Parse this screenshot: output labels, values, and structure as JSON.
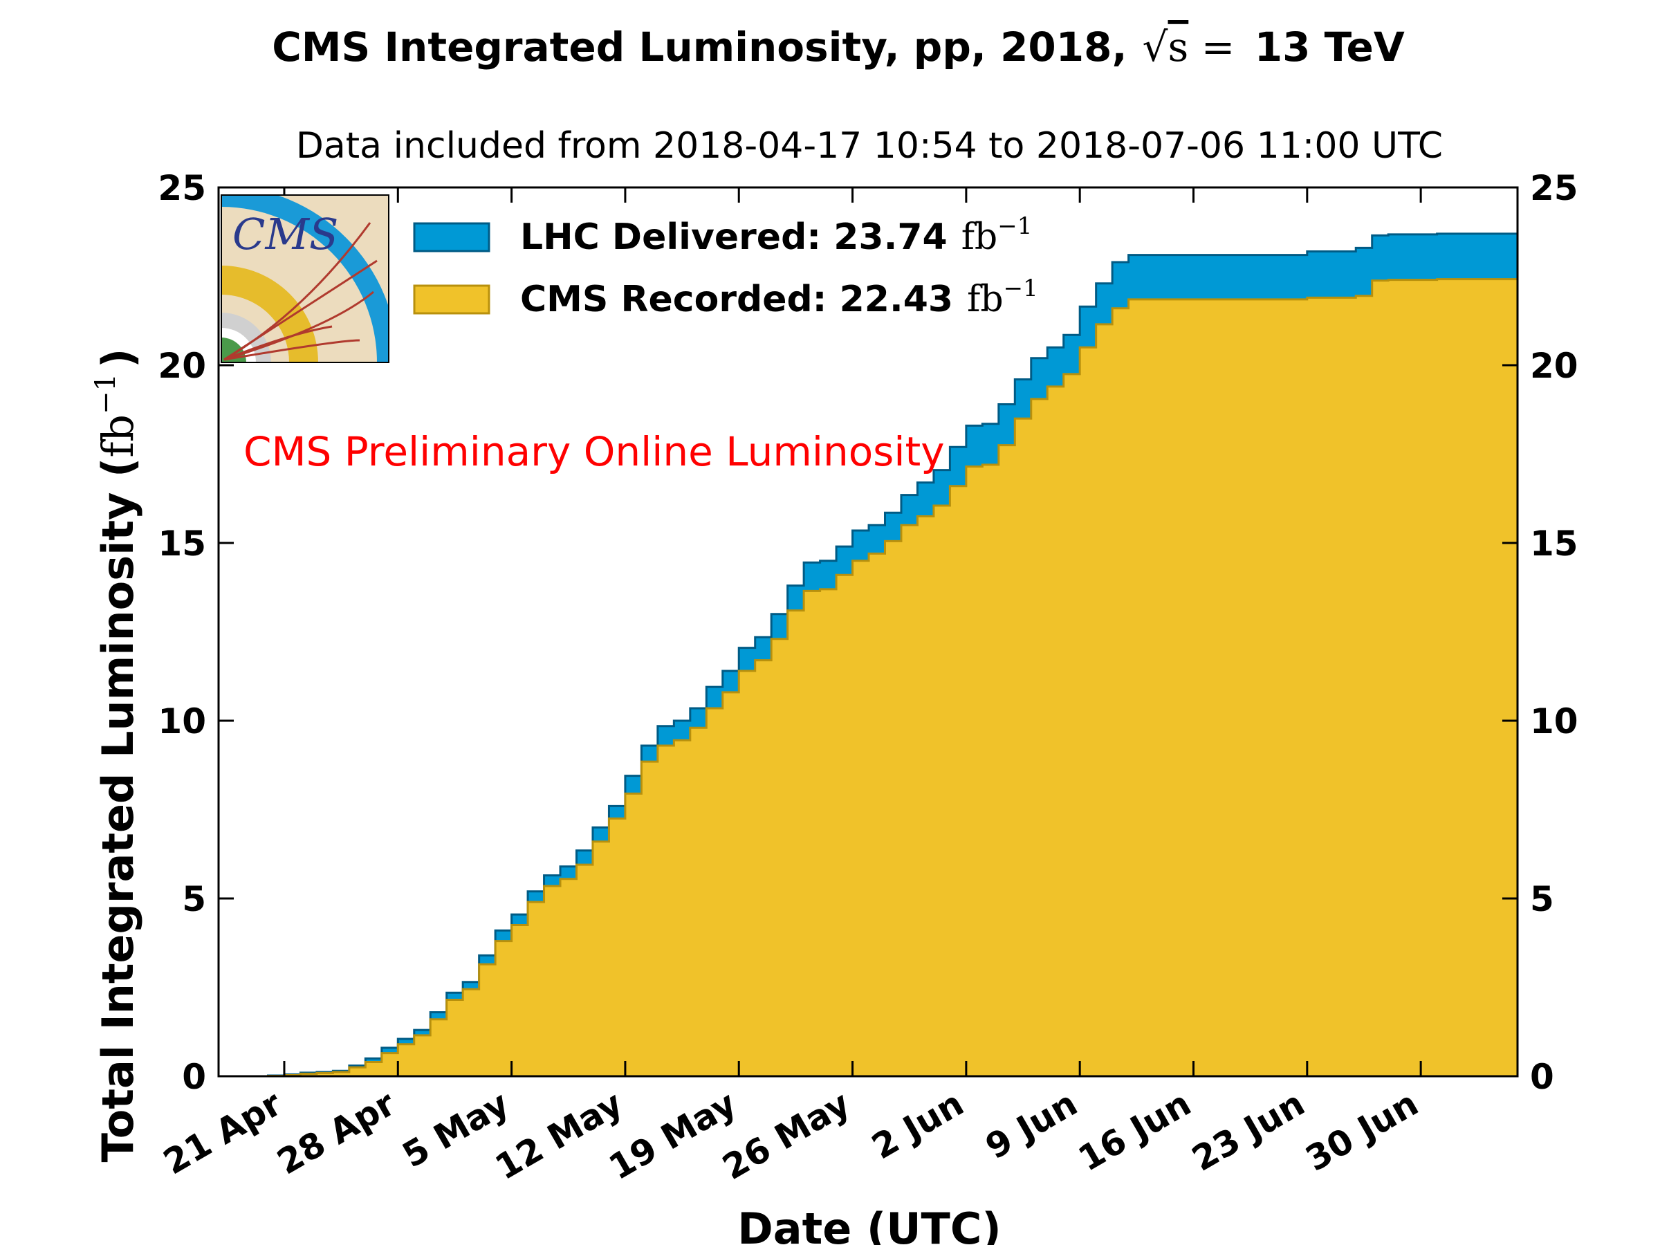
{
  "colors": {
    "delivered_fill": "#0099d5",
    "delivered_edge": "#005b85",
    "recorded_fill": "#f0c22a",
    "recorded_edge": "#b8900c",
    "annotation": "#ff0000"
  },
  "logo": {
    "text": "CMS",
    "icon": "cms-detector-logo"
  },
  "chart_data": {
    "type": "area",
    "title": "CMS Integrated Luminosity, pp, 2018,",
    "title_math": {
      "sqrt_symbol": "√",
      "sqrt_var": "s",
      "equals": " = ",
      "energy": "13 TeV"
    },
    "subtitle": "Data included from 2018-04-17 10:54 to 2018-07-06 11:00 UTC",
    "xlabel": "Date (UTC)",
    "ylabel": {
      "text": "Total Integrated Luminosity (",
      "unit_base": "fb",
      "unit_exp": "−1",
      "close": ")"
    },
    "annotation": "CMS Preliminary Online Luminosity",
    "xlim": [
      "2018-04-17",
      "2018-07-06"
    ],
    "ylim": [
      0,
      25
    ],
    "yticks": [
      0,
      5,
      10,
      15,
      20,
      25
    ],
    "xticks": [
      {
        "date": "2018-04-21",
        "label": "21 Apr"
      },
      {
        "date": "2018-04-28",
        "label": "28 Apr"
      },
      {
        "date": "2018-05-05",
        "label": "5 May"
      },
      {
        "date": "2018-05-12",
        "label": "12 May"
      },
      {
        "date": "2018-05-19",
        "label": "19 May"
      },
      {
        "date": "2018-05-26",
        "label": "26 May"
      },
      {
        "date": "2018-06-02",
        "label": "2 Jun"
      },
      {
        "date": "2018-06-09",
        "label": "9 Jun"
      },
      {
        "date": "2018-06-16",
        "label": "16 Jun"
      },
      {
        "date": "2018-06-23",
        "label": "23 Jun"
      },
      {
        "date": "2018-06-30",
        "label": "30 Jun"
      }
    ],
    "legend_position": "top-left",
    "series": [
      {
        "name": "LHC Delivered:",
        "total": "23.74",
        "unit_base": "fb",
        "unit_exp": "−1",
        "x": [
          "2018-04-17",
          "2018-04-20",
          "2018-04-21",
          "2018-04-22",
          "2018-04-23",
          "2018-04-24",
          "2018-04-25",
          "2018-04-26",
          "2018-04-27",
          "2018-04-28",
          "2018-04-29",
          "2018-04-30",
          "2018-05-01",
          "2018-05-02",
          "2018-05-03",
          "2018-05-04",
          "2018-05-05",
          "2018-05-06",
          "2018-05-07",
          "2018-05-08",
          "2018-05-09",
          "2018-05-10",
          "2018-05-11",
          "2018-05-12",
          "2018-05-13",
          "2018-05-14",
          "2018-05-15",
          "2018-05-16",
          "2018-05-17",
          "2018-05-18",
          "2018-05-19",
          "2018-05-20",
          "2018-05-21",
          "2018-05-22",
          "2018-05-23",
          "2018-05-24",
          "2018-05-25",
          "2018-05-26",
          "2018-05-27",
          "2018-05-28",
          "2018-05-29",
          "2018-05-30",
          "2018-05-31",
          "2018-06-01",
          "2018-06-02",
          "2018-06-03",
          "2018-06-04",
          "2018-06-05",
          "2018-06-06",
          "2018-06-07",
          "2018-06-08",
          "2018-06-09",
          "2018-06-10",
          "2018-06-11",
          "2018-06-12",
          "2018-06-13",
          "2018-06-22",
          "2018-06-23",
          "2018-06-26",
          "2018-06-27",
          "2018-06-28",
          "2018-07-01",
          "2018-07-06"
        ],
        "y": [
          0.0,
          0.02,
          0.05,
          0.1,
          0.12,
          0.15,
          0.3,
          0.5,
          0.8,
          1.05,
          1.3,
          1.8,
          2.35,
          2.65,
          3.4,
          4.1,
          4.55,
          5.2,
          5.65,
          5.9,
          6.35,
          7.0,
          7.6,
          8.45,
          9.3,
          9.85,
          10.0,
          10.35,
          10.95,
          11.4,
          12.05,
          12.35,
          13.0,
          13.8,
          14.45,
          14.5,
          14.9,
          15.35,
          15.5,
          15.85,
          16.35,
          16.7,
          17.05,
          17.7,
          18.3,
          18.35,
          18.9,
          19.6,
          20.2,
          20.5,
          20.85,
          21.65,
          22.3,
          22.9,
          23.1,
          23.1,
          23.1,
          23.2,
          23.3,
          23.65,
          23.68,
          23.7,
          23.74
        ]
      },
      {
        "name": "CMS Recorded:",
        "total": "22.43",
        "unit_base": "fb",
        "unit_exp": "−1",
        "x": [
          "2018-04-17",
          "2018-04-20",
          "2018-04-21",
          "2018-04-22",
          "2018-04-23",
          "2018-04-24",
          "2018-04-25",
          "2018-04-26",
          "2018-04-27",
          "2018-04-28",
          "2018-04-29",
          "2018-04-30",
          "2018-05-01",
          "2018-05-02",
          "2018-05-03",
          "2018-05-04",
          "2018-05-05",
          "2018-05-06",
          "2018-05-07",
          "2018-05-08",
          "2018-05-09",
          "2018-05-10",
          "2018-05-11",
          "2018-05-12",
          "2018-05-13",
          "2018-05-14",
          "2018-05-15",
          "2018-05-16",
          "2018-05-17",
          "2018-05-18",
          "2018-05-19",
          "2018-05-20",
          "2018-05-21",
          "2018-05-22",
          "2018-05-23",
          "2018-05-24",
          "2018-05-25",
          "2018-05-26",
          "2018-05-27",
          "2018-05-28",
          "2018-05-29",
          "2018-05-30",
          "2018-05-31",
          "2018-06-01",
          "2018-06-02",
          "2018-06-03",
          "2018-06-04",
          "2018-06-05",
          "2018-06-06",
          "2018-06-07",
          "2018-06-08",
          "2018-06-09",
          "2018-06-10",
          "2018-06-11",
          "2018-06-12",
          "2018-06-13",
          "2018-06-22",
          "2018-06-23",
          "2018-06-26",
          "2018-06-27",
          "2018-06-28",
          "2018-07-01",
          "2018-07-06"
        ],
        "y": [
          0.0,
          0.01,
          0.03,
          0.07,
          0.09,
          0.12,
          0.25,
          0.4,
          0.65,
          0.9,
          1.15,
          1.6,
          2.15,
          2.45,
          3.15,
          3.8,
          4.25,
          4.9,
          5.35,
          5.55,
          5.95,
          6.6,
          7.25,
          7.95,
          8.85,
          9.3,
          9.45,
          9.8,
          10.35,
          10.8,
          11.4,
          11.7,
          12.3,
          13.1,
          13.65,
          13.7,
          14.1,
          14.5,
          14.7,
          15.05,
          15.5,
          15.75,
          16.05,
          16.6,
          17.15,
          17.2,
          17.75,
          18.5,
          19.05,
          19.4,
          19.75,
          20.5,
          21.15,
          21.6,
          21.85,
          21.85,
          21.85,
          21.9,
          21.95,
          22.38,
          22.4,
          22.42,
          22.43
        ]
      }
    ]
  }
}
